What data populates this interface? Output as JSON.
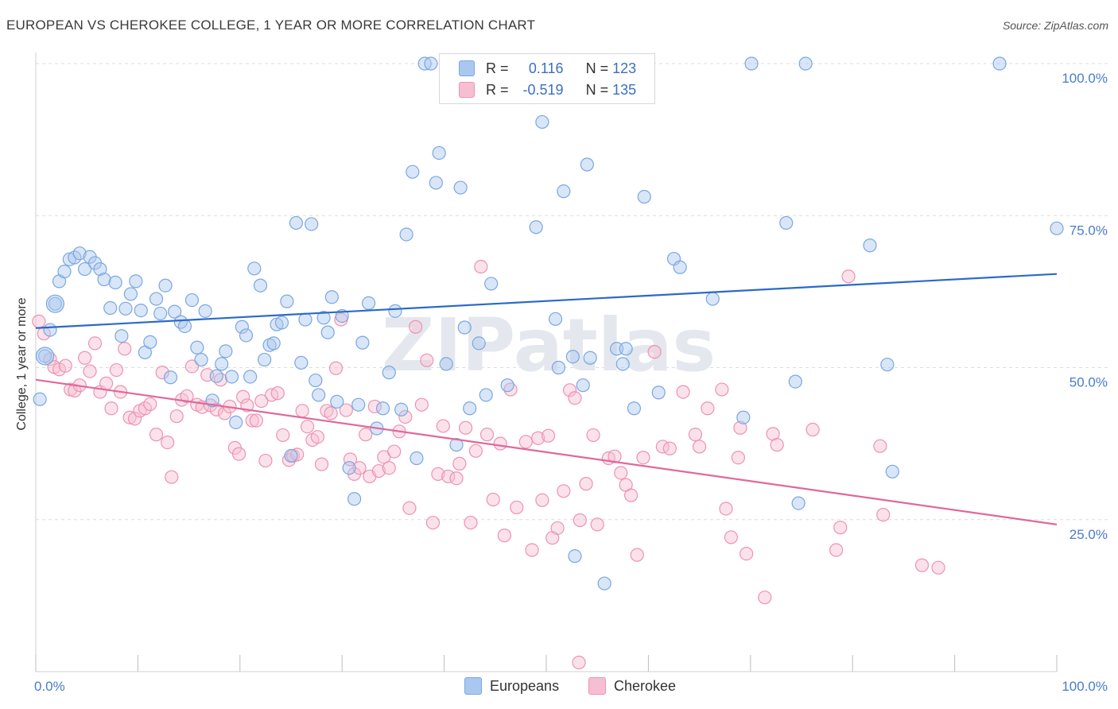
{
  "title": "EUROPEAN VS CHEROKEE COLLEGE, 1 YEAR OR MORE CORRELATION CHART",
  "source": "Source: ZipAtlas.com",
  "watermark": "ZIPatlas",
  "colors": {
    "europeans": "#7aa7e0",
    "europeans_fill": "#aac8ef",
    "europeans_line": "#2a6ac9",
    "cherokee": "#ee92b0",
    "cherokee_fill": "#f6bfd1",
    "cherokee_line": "#e0689a",
    "tick": "#4a7cc7"
  },
  "legend": {
    "rows": [
      {
        "r_label": "R =",
        "r_value": "0.116",
        "n_label": "N =",
        "n_value": "123"
      },
      {
        "r_label": "R =",
        "r_value": "-0.519",
        "n_label": "N =",
        "n_value": "135"
      }
    ]
  },
  "bottom_legend": [
    "Europeans",
    "Cherokee"
  ],
  "chart_data": {
    "type": "scatter",
    "title": "EUROPEAN VS CHEROKEE COLLEGE, 1 YEAR OR MORE CORRELATION CHART",
    "xlabel": "",
    "ylabel": "College, 1 year or more",
    "xlim": [
      0,
      100
    ],
    "ylim": [
      0,
      100
    ],
    "x_tick_labels": [
      "0.0%",
      "100.0%"
    ],
    "y_tick_labels": [
      "25.0%",
      "50.0%",
      "75.0%",
      "100.0%"
    ],
    "y_gridlines": [
      25,
      50,
      75,
      100
    ],
    "grid": true,
    "legend_position": "top-center",
    "series": [
      {
        "name": "Europeans",
        "R": 0.116,
        "N": 123,
        "trend": [
          [
            0,
            56.5
          ],
          [
            100,
            65.4
          ]
        ],
        "points": [
          [
            0.4,
            44.8
          ],
          [
            0.9,
            51.9
          ],
          [
            1.4,
            56.2
          ],
          [
            1.9,
            60.5
          ],
          [
            2.3,
            64.2
          ],
          [
            2.8,
            65.8
          ],
          [
            3.3,
            67.8
          ],
          [
            3.8,
            68.1
          ],
          [
            4.3,
            68.8
          ],
          [
            4.8,
            66.2
          ],
          [
            5.3,
            68.2
          ],
          [
            5.8,
            67.2
          ],
          [
            6.3,
            66.2
          ],
          [
            6.7,
            64.5
          ],
          [
            7.3,
            59.8
          ],
          [
            7.8,
            64.0
          ],
          [
            8.4,
            55.2
          ],
          [
            8.8,
            59.7
          ],
          [
            9.3,
            62.1
          ],
          [
            9.8,
            64.2
          ],
          [
            10.3,
            59.4
          ],
          [
            10.7,
            52.5
          ],
          [
            11.2,
            54.2
          ],
          [
            11.8,
            61.3
          ],
          [
            12.2,
            58.9
          ],
          [
            12.7,
            63.5
          ],
          [
            13.2,
            48.4
          ],
          [
            13.6,
            59.2
          ],
          [
            14.2,
            57.5
          ],
          [
            14.6,
            56.8
          ],
          [
            15.3,
            61.1
          ],
          [
            15.8,
            53.3
          ],
          [
            16.2,
            51.3
          ],
          [
            16.6,
            59.3
          ],
          [
            17.3,
            44.6
          ],
          [
            17.7,
            48.6
          ],
          [
            18.2,
            50.6
          ],
          [
            18.6,
            52.7
          ],
          [
            19.2,
            48.5
          ],
          [
            19.6,
            41.0
          ],
          [
            20.2,
            56.7
          ],
          [
            20.6,
            55.3
          ],
          [
            21.0,
            48.5
          ],
          [
            21.4,
            66.3
          ],
          [
            22.0,
            63.5
          ],
          [
            22.4,
            51.3
          ],
          [
            22.9,
            53.7
          ],
          [
            23.3,
            54.0
          ],
          [
            23.6,
            57.1
          ],
          [
            24.1,
            57.4
          ],
          [
            24.6,
            60.9
          ],
          [
            25.0,
            35.5
          ],
          [
            25.5,
            73.8
          ],
          [
            26.0,
            50.8
          ],
          [
            26.4,
            57.9
          ],
          [
            27.0,
            73.6
          ],
          [
            27.4,
            47.9
          ],
          [
            27.7,
            45.5
          ],
          [
            28.2,
            58.2
          ],
          [
            28.6,
            55.8
          ],
          [
            29.0,
            61.6
          ],
          [
            29.5,
            44.4
          ],
          [
            30.0,
            58.5
          ],
          [
            30.7,
            33.5
          ],
          [
            31.2,
            28.4
          ],
          [
            31.6,
            43.9
          ],
          [
            32.0,
            54.1
          ],
          [
            32.6,
            60.6
          ],
          [
            33.4,
            40.0
          ],
          [
            34.0,
            43.3
          ],
          [
            34.6,
            49.2
          ],
          [
            35.2,
            59.3
          ],
          [
            35.8,
            43.1
          ],
          [
            36.3,
            71.9
          ],
          [
            36.9,
            82.2
          ],
          [
            37.3,
            35.1
          ],
          [
            38.1,
            100
          ],
          [
            38.7,
            100
          ],
          [
            39.2,
            80.4
          ],
          [
            39.5,
            85.3
          ],
          [
            40.2,
            50.6
          ],
          [
            41.2,
            37.3
          ],
          [
            41.6,
            79.6
          ],
          [
            42.0,
            56.6
          ],
          [
            42.5,
            43.3
          ],
          [
            43.4,
            54.0
          ],
          [
            44.1,
            45.5
          ],
          [
            44.6,
            63.8
          ],
          [
            45.6,
            100
          ],
          [
            46.2,
            47.1
          ],
          [
            47.9,
            100
          ],
          [
            49.0,
            73.1
          ],
          [
            49.6,
            90.4
          ],
          [
            50.2,
            100
          ],
          [
            50.9,
            58.0
          ],
          [
            51.2,
            50.0
          ],
          [
            51.7,
            79.0
          ],
          [
            52.6,
            51.8
          ],
          [
            52.8,
            19.0
          ],
          [
            53.6,
            47.1
          ],
          [
            54.0,
            83.4
          ],
          [
            54.3,
            51.6
          ],
          [
            55.7,
            14.5
          ],
          [
            56.9,
            53.1
          ],
          [
            57.5,
            50.6
          ],
          [
            57.8,
            53.1
          ],
          [
            58.6,
            43.3
          ],
          [
            59.6,
            78.1
          ],
          [
            61.0,
            45.9
          ],
          [
            62.5,
            67.9
          ],
          [
            63.1,
            66.5
          ],
          [
            66.3,
            61.3
          ],
          [
            69.3,
            41.8
          ],
          [
            70.1,
            100
          ],
          [
            73.5,
            73.8
          ],
          [
            74.4,
            47.7
          ],
          [
            74.7,
            27.7
          ],
          [
            75.4,
            100
          ],
          [
            81.7,
            70.1
          ],
          [
            83.4,
            50.5
          ],
          [
            83.9,
            32.9
          ],
          [
            94.4,
            100
          ],
          [
            100,
            72.9
          ]
        ]
      },
      {
        "name": "Cherokee",
        "R": -0.519,
        "N": 135,
        "trend": [
          [
            0,
            48.0
          ],
          [
            100,
            24.2
          ]
        ],
        "points": [
          [
            0.3,
            57.6
          ],
          [
            0.8,
            55.6
          ],
          [
            1.4,
            51.4
          ],
          [
            1.8,
            50.1
          ],
          [
            2.3,
            49.7
          ],
          [
            2.9,
            50.3
          ],
          [
            3.4,
            46.4
          ],
          [
            3.8,
            46.2
          ],
          [
            4.3,
            47.1
          ],
          [
            4.8,
            51.6
          ],
          [
            5.3,
            49.4
          ],
          [
            5.8,
            54.0
          ],
          [
            6.3,
            46.0
          ],
          [
            6.9,
            47.4
          ],
          [
            7.4,
            43.3
          ],
          [
            7.9,
            49.6
          ],
          [
            8.3,
            46.0
          ],
          [
            8.7,
            53.1
          ],
          [
            9.2,
            41.8
          ],
          [
            9.7,
            41.6
          ],
          [
            10.2,
            42.9
          ],
          [
            10.7,
            43.3
          ],
          [
            11.2,
            44.0
          ],
          [
            11.8,
            39.0
          ],
          [
            12.4,
            49.2
          ],
          [
            12.9,
            37.7
          ],
          [
            13.3,
            32.0
          ],
          [
            13.8,
            42.0
          ],
          [
            14.3,
            44.7
          ],
          [
            14.8,
            45.3
          ],
          [
            15.3,
            50.2
          ],
          [
            15.8,
            43.9
          ],
          [
            16.3,
            43.5
          ],
          [
            16.8,
            48.8
          ],
          [
            17.1,
            43.8
          ],
          [
            17.7,
            43.1
          ],
          [
            18.1,
            48.0
          ],
          [
            18.5,
            42.5
          ],
          [
            19.0,
            43.6
          ],
          [
            19.5,
            36.8
          ],
          [
            19.9,
            35.8
          ],
          [
            20.3,
            45.2
          ],
          [
            20.7,
            43.8
          ],
          [
            21.2,
            41.3
          ],
          [
            21.6,
            41.3
          ],
          [
            22.1,
            44.5
          ],
          [
            22.5,
            34.7
          ],
          [
            23.1,
            45.5
          ],
          [
            23.7,
            45.8
          ],
          [
            24.2,
            38.9
          ],
          [
            24.8,
            34.8
          ],
          [
            25.2,
            35.5
          ],
          [
            25.6,
            35.7
          ],
          [
            26.1,
            42.9
          ],
          [
            26.6,
            40.3
          ],
          [
            27.1,
            38.1
          ],
          [
            27.6,
            38.6
          ],
          [
            28.0,
            34.1
          ],
          [
            28.5,
            42.9
          ],
          [
            28.9,
            42.5
          ],
          [
            29.4,
            49.9
          ],
          [
            29.9,
            57.9
          ],
          [
            30.4,
            43.0
          ],
          [
            30.8,
            34.9
          ],
          [
            31.2,
            32.5
          ],
          [
            31.7,
            33.5
          ],
          [
            32.3,
            39.0
          ],
          [
            32.7,
            32.1
          ],
          [
            33.2,
            43.6
          ],
          [
            33.6,
            33.0
          ],
          [
            34.1,
            35.3
          ],
          [
            34.6,
            33.5
          ],
          [
            35.1,
            36.2
          ],
          [
            35.6,
            39.5
          ],
          [
            36.2,
            41.9
          ],
          [
            36.6,
            26.9
          ],
          [
            37.2,
            56.7
          ],
          [
            37.8,
            43.9
          ],
          [
            38.3,
            51.2
          ],
          [
            38.9,
            24.5
          ],
          [
            39.4,
            32.5
          ],
          [
            39.9,
            40.4
          ],
          [
            40.4,
            32.1
          ],
          [
            41.2,
            31.8
          ],
          [
            41.5,
            34.2
          ],
          [
            42.1,
            40.1
          ],
          [
            42.6,
            24.5
          ],
          [
            43.1,
            36.3
          ],
          [
            43.6,
            66.6
          ],
          [
            44.2,
            39.0
          ],
          [
            44.8,
            28.3
          ],
          [
            45.5,
            37.5
          ],
          [
            45.9,
            22.4
          ],
          [
            46.5,
            46.4
          ],
          [
            47.1,
            27.0
          ],
          [
            48.0,
            37.8
          ],
          [
            48.6,
            20.0
          ],
          [
            49.2,
            38.4
          ],
          [
            49.6,
            28.2
          ],
          [
            50.2,
            38.8
          ],
          [
            50.6,
            22.0
          ],
          [
            51.1,
            23.6
          ],
          [
            51.7,
            29.7
          ],
          [
            52.3,
            46.3
          ],
          [
            52.8,
            45.0
          ],
          [
            53.3,
            24.9
          ],
          [
            53.9,
            30.9
          ],
          [
            54.6,
            38.9
          ],
          [
            55.0,
            24.2
          ],
          [
            56.1,
            35.1
          ],
          [
            56.7,
            35.4
          ],
          [
            57.3,
            32.7
          ],
          [
            57.8,
            30.7
          ],
          [
            58.3,
            29.0
          ],
          [
            58.9,
            19.2
          ],
          [
            59.5,
            35.2
          ],
          [
            60.6,
            52.6
          ],
          [
            61.4,
            37.0
          ],
          [
            62.1,
            36.7
          ],
          [
            63.4,
            46.0
          ],
          [
            64.6,
            39.0
          ],
          [
            65.0,
            37.0
          ],
          [
            65.8,
            43.3
          ],
          [
            67.2,
            46.4
          ],
          [
            67.6,
            26.8
          ],
          [
            68.1,
            22.1
          ],
          [
            69.0,
            40.1
          ],
          [
            69.6,
            19.4
          ],
          [
            71.4,
            12.2
          ],
          [
            72.2,
            39.1
          ],
          [
            72.6,
            37.3
          ],
          [
            76.1,
            39.8
          ],
          [
            78.4,
            20.0
          ],
          [
            78.8,
            23.7
          ],
          [
            79.6,
            65.0
          ],
          [
            82.7,
            37.1
          ],
          [
            83.0,
            25.8
          ],
          [
            86.8,
            17.5
          ],
          [
            88.4,
            17.1
          ],
          [
            68.8,
            35.2
          ],
          [
            53.2,
            1.5
          ]
        ]
      }
    ]
  }
}
